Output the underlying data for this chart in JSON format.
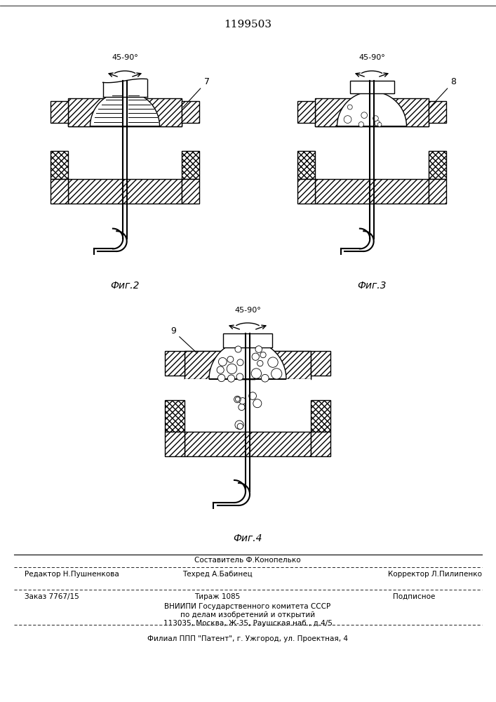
{
  "bg_color": "#ffffff",
  "fig_width": 7.07,
  "fig_height": 10.0,
  "title": "1199503",
  "fig2_label": "Фиг.2",
  "fig3_label": "Фиг.3",
  "fig4_label": "Фиг.4",
  "angle_label": "45-90°",
  "label_7": "7",
  "label_8": "8",
  "label_9": "9",
  "footer": {
    "line1_center": "Составитель Ф.Конопелько",
    "line2_left": "Редактор Н.Пушненкова",
    "line2_center": "Техред А.Бабинец",
    "line2_right": "Корректор Л.Пилипенко",
    "line3_left": "Заказ 7767/15",
    "line3_center": "Тираж 1085",
    "line3_right": "Подписное",
    "line4": "ВНИИПИ Государственного комитета СССР",
    "line5": "по делам изобретений и открытий",
    "line6": "113035, Москва, Ж-35, Раушская наб., д.4/5",
    "line7": "Филиал ППП \"Патент\", г. Ужгород, ул. Проектная, 4"
  }
}
